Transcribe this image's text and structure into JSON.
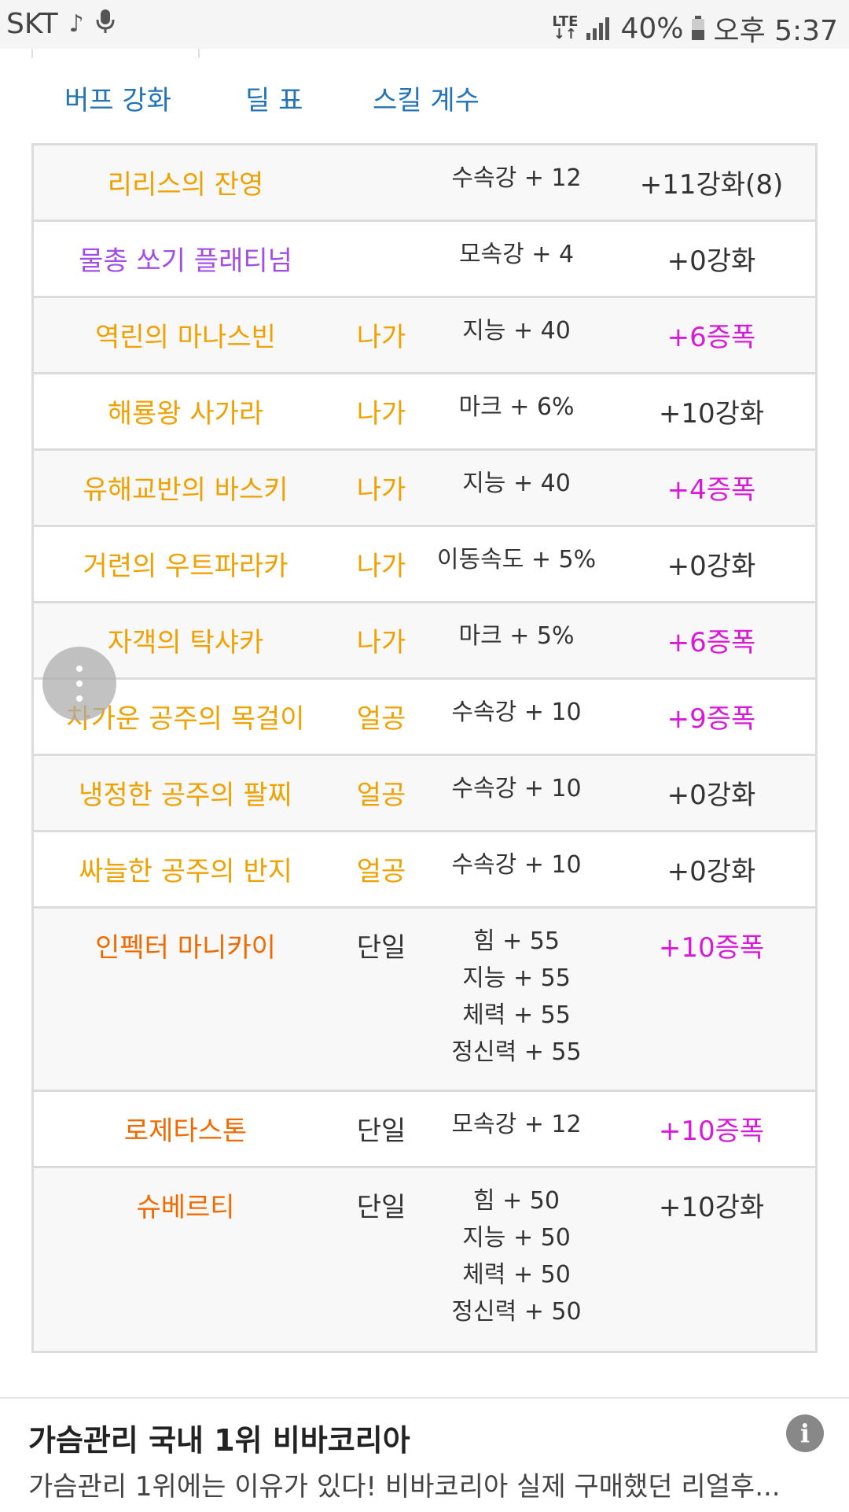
{
  "status_bar": {
    "carrier": "SKT",
    "network": "LTE",
    "battery": "40%",
    "time": "오후 5:37"
  },
  "nav": {
    "tabs": [
      "버프 강화",
      "딜 표",
      "스킬 계수"
    ]
  },
  "colors": {
    "link": "#2273b8",
    "legendary": "#f0a100",
    "epic": "#a24de8",
    "mythic": "#f06a00",
    "amplified": "#d81ad8"
  },
  "table": {
    "rows": [
      {
        "name": "리리스의 잔영",
        "type": "",
        "stats": [
          "수속강 + 12"
        ],
        "enhance": "+11강화(8)",
        "name_color": "legendary",
        "enhance_color": "dark"
      },
      {
        "name": "물총 쏘기 플래티넘",
        "type": "",
        "stats": [
          "모속강 + 4"
        ],
        "enhance": "+0강화",
        "name_color": "epic",
        "enhance_color": "dark"
      },
      {
        "name": "역린의 마나스빈",
        "type": "나가",
        "stats": [
          "지능 + 40"
        ],
        "enhance": "+6증폭",
        "name_color": "legendary",
        "enhance_color": "amplified"
      },
      {
        "name": "해룡왕 사가라",
        "type": "나가",
        "stats": [
          "마크 + 6%"
        ],
        "enhance": "+10강화",
        "name_color": "legendary",
        "enhance_color": "dark"
      },
      {
        "name": "유해교반의 바스키",
        "type": "나가",
        "stats": [
          "지능 + 40"
        ],
        "enhance": "+4증폭",
        "name_color": "legendary",
        "enhance_color": "amplified"
      },
      {
        "name": "거련의 우트파라카",
        "type": "나가",
        "stats": [
          "이동속도 + 5%"
        ],
        "enhance": "+0강화",
        "name_color": "legendary",
        "enhance_color": "dark"
      },
      {
        "name": "자객의 탁샤카",
        "type": "나가",
        "stats": [
          "마크 + 5%"
        ],
        "enhance": "+6증폭",
        "name_color": "legendary",
        "enhance_color": "amplified"
      },
      {
        "name": "차가운 공주의 목걸이",
        "type": "얼공",
        "stats": [
          "수속강 + 10"
        ],
        "enhance": "+9증폭",
        "name_color": "legendary",
        "enhance_color": "amplified"
      },
      {
        "name": "냉정한 공주의 팔찌",
        "type": "얼공",
        "stats": [
          "수속강 + 10"
        ],
        "enhance": "+0강화",
        "name_color": "legendary",
        "enhance_color": "dark"
      },
      {
        "name": "싸늘한 공주의 반지",
        "type": "얼공",
        "stats": [
          "수속강 + 10"
        ],
        "enhance": "+0강화",
        "name_color": "legendary",
        "enhance_color": "dark"
      },
      {
        "name": "인펙터 마니카이",
        "type": "단일",
        "stats": [
          "힘 + 55",
          "지능 + 55",
          "체력 + 55",
          "정신력 + 55"
        ],
        "enhance": "+10증폭",
        "name_color": "mythic",
        "enhance_color": "amplified"
      },
      {
        "name": "로제타스톤",
        "type": "단일",
        "stats": [
          "모속강 + 12"
        ],
        "enhance": "+10증폭",
        "name_color": "mythic",
        "enhance_color": "amplified"
      },
      {
        "name": "슈베르티",
        "type": "단일",
        "stats": [
          "힘 + 50",
          "지능 + 50",
          "체력 + 50",
          "정신력 + 50"
        ],
        "enhance": "+10강화",
        "name_color": "mythic",
        "enhance_color": "dark"
      }
    ]
  },
  "ad": {
    "title": "가슴관리 국내 1위 비바코리아",
    "description": "가슴관리 1위에는 이유가 있다! 비바코리아 실제 구매했던 리얼후...",
    "info_label": "i"
  }
}
